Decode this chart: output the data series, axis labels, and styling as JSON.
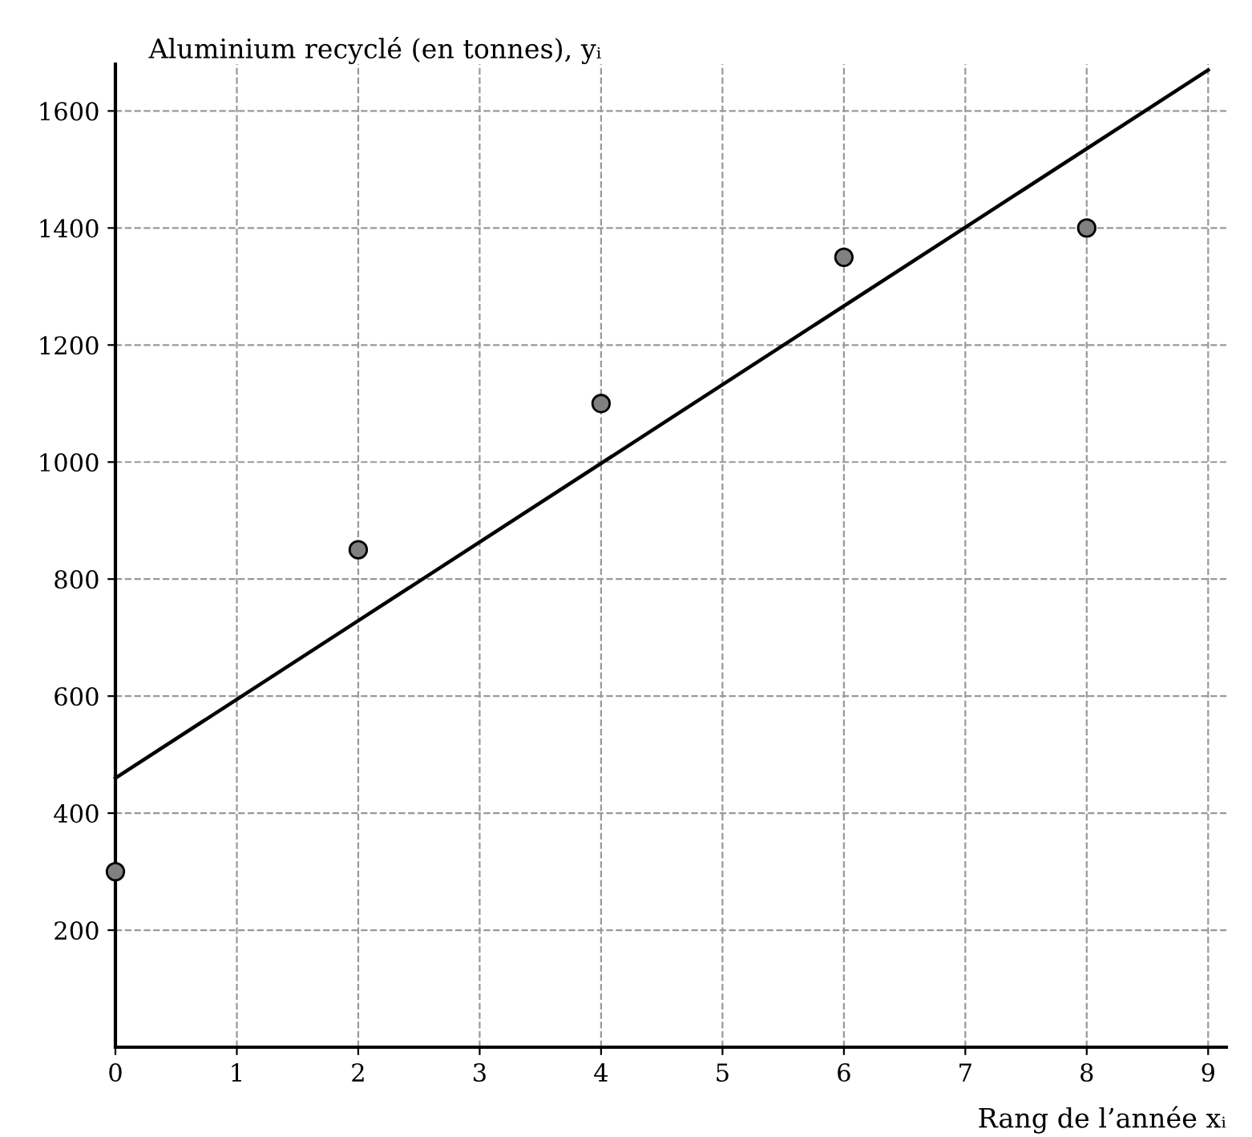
{
  "chart_data": {
    "type": "scatter",
    "xlabel": "Rang de l’année xᵢ",
    "ylabel": "Aluminium recyclé (en tonnes), yᵢ",
    "x": [
      0,
      2,
      4,
      6,
      8
    ],
    "series": [
      {
        "color": "#808080",
        "marker": "circle",
        "values": [
          300,
          850,
          1100,
          1350,
          1400
        ]
      },
      {
        "type": "line",
        "color": "#000000",
        "x": [
          0,
          9
        ],
        "values": [
          460,
          1670
        ]
      }
    ],
    "xlim": [
      0,
      9.15
    ],
    "ylim": [
      0,
      1680
    ],
    "xticks": [
      0,
      1,
      2,
      3,
      4,
      5,
      6,
      7,
      8,
      9
    ],
    "yticks": [
      200,
      400,
      600,
      800,
      1000,
      1200,
      1400,
      1600
    ],
    "grid": true,
    "line_style": "solid"
  }
}
